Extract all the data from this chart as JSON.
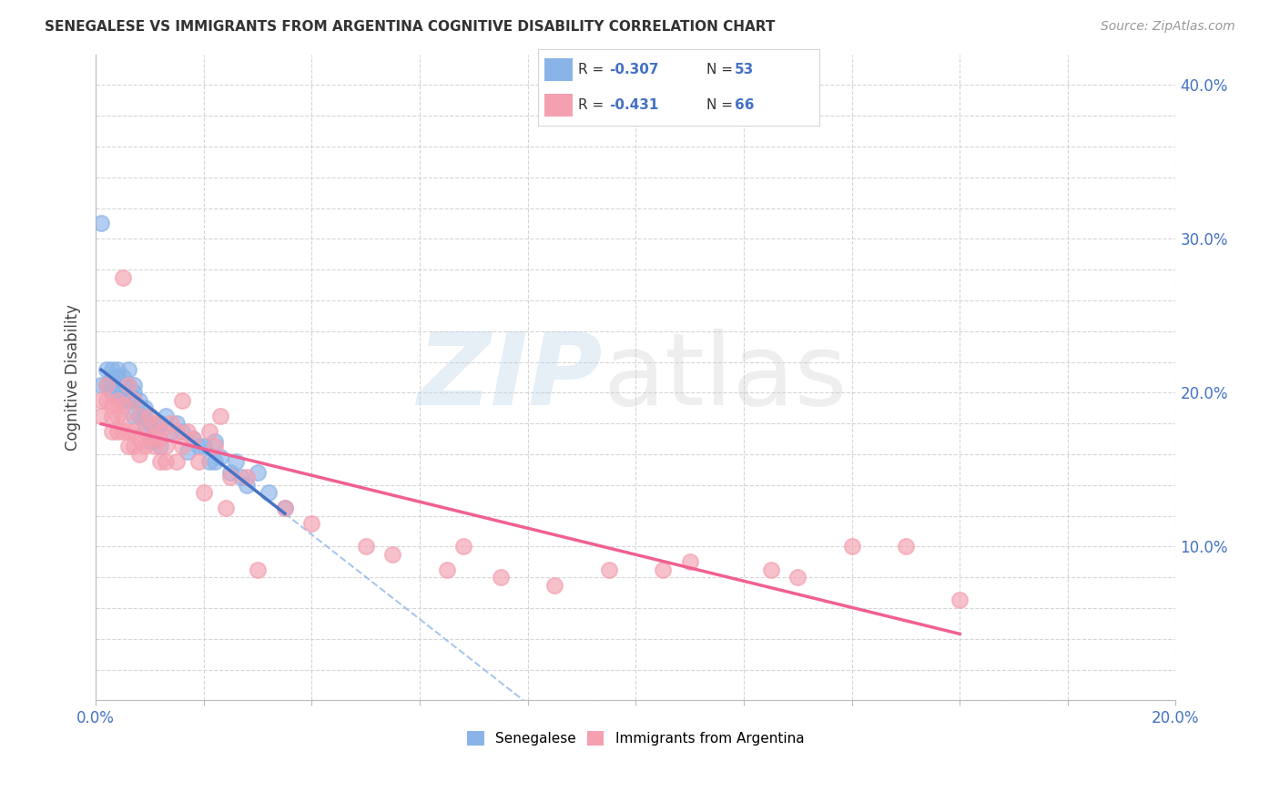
{
  "title": "SENEGALESE VS IMMIGRANTS FROM ARGENTINA COGNITIVE DISABILITY CORRELATION CHART",
  "source": "Source: ZipAtlas.com",
  "ylabel": "Cognitive Disability",
  "senegalese_color": "#8ab4e8",
  "argentina_color": "#f4a0b0",
  "senegalese_line_color": "#4472c4",
  "argentina_line_color": "#f06090",
  "dashed_line_color": "#8ab4e8",
  "background_color": "#ffffff",
  "xlim": [
    0.0,
    0.2
  ],
  "ylim": [
    0.0,
    0.42
  ],
  "xtick_positions": [
    0.0,
    0.02,
    0.04,
    0.06,
    0.08,
    0.1,
    0.12,
    0.14,
    0.16,
    0.18,
    0.2
  ],
  "ytick_right_positions": [
    0.0,
    0.1,
    0.2,
    0.3,
    0.4
  ],
  "ytick_right_labels": [
    "",
    "10.0%",
    "20.0%",
    "30.0%",
    "40.0%"
  ],
  "legend_r1": "-0.307",
  "legend_n1": "53",
  "legend_r2": "-0.431",
  "legend_n2": "66",
  "senegalese_x": [
    0.001,
    0.002,
    0.002,
    0.003,
    0.003,
    0.003,
    0.003,
    0.004,
    0.004,
    0.004,
    0.004,
    0.005,
    0.005,
    0.005,
    0.005,
    0.006,
    0.006,
    0.006,
    0.006,
    0.007,
    0.007,
    0.007,
    0.007,
    0.008,
    0.008,
    0.009,
    0.009,
    0.009,
    0.01,
    0.01,
    0.011,
    0.012,
    0.012,
    0.013,
    0.014,
    0.015,
    0.016,
    0.017,
    0.018,
    0.019,
    0.02,
    0.021,
    0.022,
    0.022,
    0.023,
    0.025,
    0.026,
    0.027,
    0.028,
    0.03,
    0.032,
    0.035,
    0.001
  ],
  "senegalese_y": [
    0.205,
    0.215,
    0.205,
    0.215,
    0.21,
    0.205,
    0.2,
    0.215,
    0.21,
    0.205,
    0.198,
    0.21,
    0.205,
    0.2,
    0.195,
    0.215,
    0.205,
    0.2,
    0.195,
    0.205,
    0.2,
    0.195,
    0.185,
    0.195,
    0.185,
    0.19,
    0.185,
    0.178,
    0.168,
    0.18,
    0.175,
    0.165,
    0.18,
    0.185,
    0.175,
    0.18,
    0.175,
    0.162,
    0.17,
    0.165,
    0.165,
    0.155,
    0.168,
    0.155,
    0.158,
    0.148,
    0.155,
    0.145,
    0.14,
    0.148,
    0.135,
    0.125,
    0.31
  ],
  "argentina_x": [
    0.001,
    0.001,
    0.002,
    0.002,
    0.003,
    0.003,
    0.003,
    0.004,
    0.004,
    0.004,
    0.005,
    0.005,
    0.005,
    0.005,
    0.006,
    0.006,
    0.006,
    0.007,
    0.007,
    0.007,
    0.008,
    0.008,
    0.008,
    0.009,
    0.009,
    0.01,
    0.01,
    0.011,
    0.011,
    0.012,
    0.012,
    0.012,
    0.013,
    0.013,
    0.014,
    0.015,
    0.015,
    0.016,
    0.016,
    0.017,
    0.018,
    0.019,
    0.02,
    0.021,
    0.022,
    0.023,
    0.024,
    0.025,
    0.028,
    0.03,
    0.035,
    0.04,
    0.05,
    0.055,
    0.065,
    0.068,
    0.075,
    0.085,
    0.095,
    0.105,
    0.11,
    0.125,
    0.13,
    0.14,
    0.15,
    0.16
  ],
  "argentina_y": [
    0.195,
    0.185,
    0.205,
    0.195,
    0.185,
    0.192,
    0.175,
    0.195,
    0.185,
    0.175,
    0.192,
    0.185,
    0.175,
    0.275,
    0.205,
    0.175,
    0.165,
    0.195,
    0.175,
    0.165,
    0.185,
    0.17,
    0.16,
    0.175,
    0.165,
    0.185,
    0.17,
    0.18,
    0.165,
    0.175,
    0.17,
    0.155,
    0.165,
    0.155,
    0.18,
    0.175,
    0.155,
    0.195,
    0.165,
    0.175,
    0.17,
    0.155,
    0.135,
    0.175,
    0.165,
    0.185,
    0.125,
    0.145,
    0.145,
    0.085,
    0.125,
    0.115,
    0.1,
    0.095,
    0.085,
    0.1,
    0.08,
    0.075,
    0.085,
    0.085,
    0.09,
    0.085,
    0.08,
    0.1,
    0.1,
    0.065
  ]
}
